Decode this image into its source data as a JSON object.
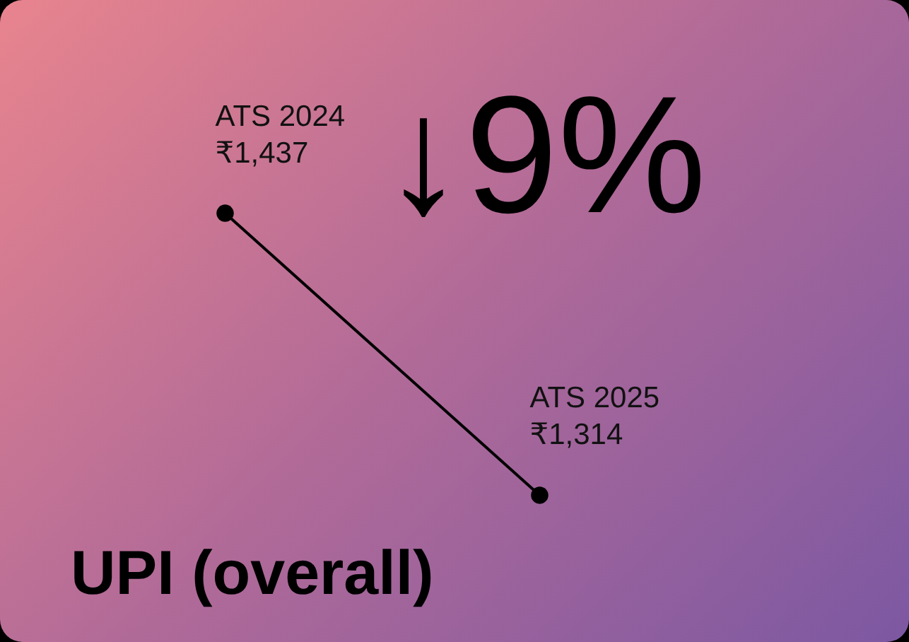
{
  "chart_data": {
    "type": "line",
    "title": "UPI (overall)",
    "annotations": [
      "↓9%"
    ],
    "categories": [
      "ATS 2024",
      "ATS 2025"
    ],
    "series": [
      {
        "color": "#000000",
        "values": [
          1437,
          1314
        ],
        "value_labels": [
          "₹1,437",
          "₹1,314"
        ]
      }
    ],
    "ylim": [
      1250,
      1530
    ],
    "marker": "circle",
    "line_style": "solid"
  }
}
